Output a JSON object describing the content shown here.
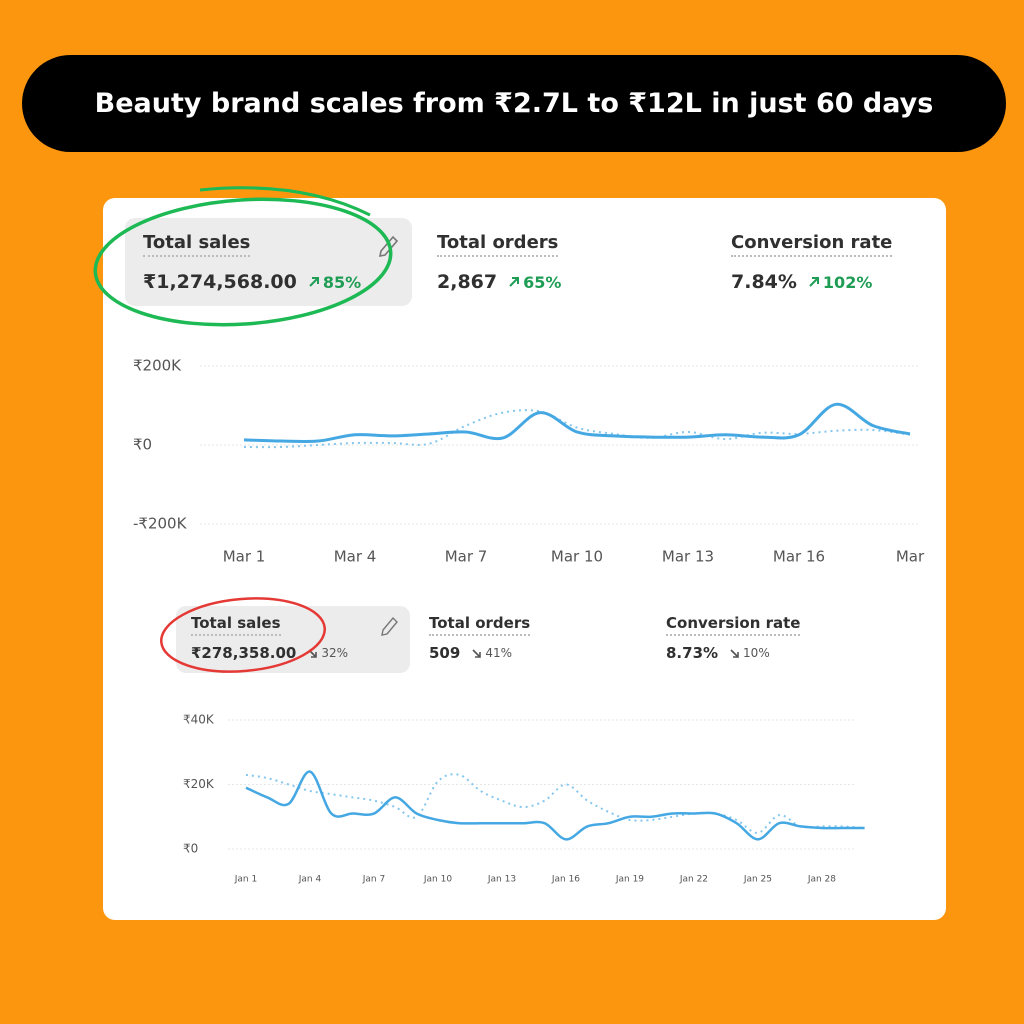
{
  "headline": "Beauty brand scales from ₹2.7L to ₹12L in just 60 days",
  "dashboards": [
    {
      "metrics": [
        {
          "label": "Total sales",
          "value": "₹1,274,568.00",
          "change": "85%"
        },
        {
          "label": "Total orders",
          "value": "2,867",
          "change": "65%"
        },
        {
          "label": "Conversion rate",
          "value": "7.84%",
          "change": "102%"
        }
      ]
    },
    {
      "metrics": [
        {
          "label": "Total sales",
          "value": "₹278,358.00",
          "change": "32%"
        },
        {
          "label": "Total orders",
          "value": "509",
          "change": "41%"
        },
        {
          "label": "Conversion rate",
          "value": "8.73%",
          "change": "10%"
        }
      ]
    }
  ],
  "chart_data": [
    {
      "type": "line",
      "categories": [
        "Mar 1",
        null,
        null,
        "Mar 4",
        null,
        null,
        "Mar 7",
        null,
        null,
        "Mar 10",
        null,
        null,
        "Mar 13",
        null,
        null,
        "Mar 16",
        null,
        null,
        "Mar"
      ],
      "series": [
        {
          "color": "#45a8e3",
          "values": [
            13000,
            10000,
            10000,
            26000,
            23000,
            28000,
            33000,
            18000,
            82000,
            33000,
            23000,
            20000,
            20000,
            26000,
            20000,
            26000,
            103000,
            49000,
            28000
          ]
        },
        {
          "color": "#84c6ee",
          "values": [
            -5000,
            -5000,
            0,
            5000,
            5000,
            3000,
            49000,
            82000,
            85000,
            44000,
            28000,
            18000,
            33000,
            15000,
            31000,
            28000,
            36000,
            38000,
            26000
          ]
        }
      ],
      "ylim": [
        -200000,
        200000
      ],
      "yticks": [
        {
          "value": 200000,
          "label": "₹200K"
        },
        {
          "value": 0,
          "label": "₹0"
        },
        {
          "value": -200000,
          "label": "-₹200K"
        }
      ],
      "grid": true
    },
    {
      "type": "line",
      "categories": [
        "Jan 1",
        null,
        null,
        "Jan 4",
        null,
        null,
        "Jan 7",
        null,
        null,
        "Jan 10",
        null,
        null,
        "Jan 13",
        null,
        null,
        "Jan 16",
        null,
        null,
        "Jan 19",
        null,
        null,
        "Jan 22",
        null,
        null,
        "Jan 25",
        null,
        null,
        "Jan 28",
        null,
        null
      ],
      "series": [
        {
          "color": "#45a8e3",
          "values": [
            19000,
            16000,
            14000,
            24000,
            11000,
            11000,
            11000,
            16000,
            11000,
            9000,
            8000,
            8000,
            8000,
            8000,
            8000,
            3000,
            7000,
            8000,
            10000,
            10000,
            11000,
            11000,
            11000,
            8000,
            3000,
            8000,
            7000,
            6500,
            6500,
            6500
          ]
        },
        {
          "color": "#84c6ee",
          "values": [
            23000,
            22000,
            20000,
            18000,
            17000,
            16000,
            15000,
            13000,
            10000,
            21000,
            23000,
            18000,
            15000,
            13000,
            15000,
            20000,
            15000,
            11500,
            9000,
            9000,
            10000,
            11000,
            11000,
            9000,
            5000,
            10500,
            7000,
            7000,
            7000,
            6500
          ]
        }
      ],
      "ylim": [
        0,
        40000
      ],
      "yticks": [
        {
          "value": 40000,
          "label": "₹40K"
        },
        {
          "value": 20000,
          "label": "₹20K"
        },
        {
          "value": 0,
          "label": "₹0"
        }
      ],
      "grid": true
    }
  ]
}
